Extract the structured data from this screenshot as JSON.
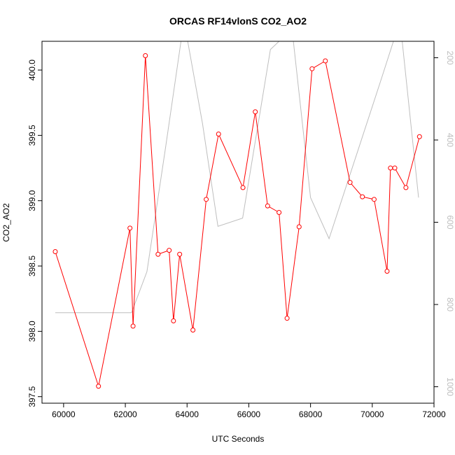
{
  "chart_data": {
    "type": "line",
    "title": "ORCAS RF14vlonS CO2_AO2",
    "xlabel": "UTC Seconds",
    "ylabel": "CO2_AO2",
    "xlim": [
      59300,
      72000
    ],
    "ylim": [
      397.45,
      400.22
    ],
    "y2lim": [
      1040,
      160
    ],
    "x_ticks": [
      60000,
      62000,
      64000,
      66000,
      68000,
      70000,
      72000
    ],
    "y_ticks": [
      397.5,
      398.0,
      398.5,
      399.0,
      399.5,
      400.0
    ],
    "y2_ticks": [
      200,
      400,
      600,
      800,
      1000
    ],
    "x_tick_labels": [
      "60000",
      "62000",
      "64000",
      "66000",
      "68000",
      "70000",
      "72000"
    ],
    "y_tick_labels": [
      "397.5",
      "398.0",
      "398.5",
      "399.0",
      "399.5",
      "400.0"
    ],
    "y2_tick_labels": [
      "200",
      "400",
      "600",
      "800",
      "1000"
    ],
    "grid": false,
    "series": [
      {
        "axis": "left",
        "color": "#ff0000",
        "marker": "open-circle",
        "x": [
          59730,
          61130,
          62150,
          62250,
          62650,
          63060,
          63420,
          63560,
          63760,
          64190,
          64620,
          65020,
          65810,
          66210,
          66610,
          66980,
          67240,
          67630,
          68050,
          68480,
          69280,
          69680,
          70060,
          70480,
          70590,
          70730,
          71090,
          71530
        ],
        "y": [
          398.61,
          397.58,
          398.79,
          398.04,
          400.11,
          398.59,
          398.62,
          398.08,
          398.59,
          398.01,
          399.01,
          399.51,
          399.1,
          399.68,
          398.96,
          398.91,
          398.1,
          398.8,
          400.01,
          400.07,
          399.14,
          399.03,
          399.01,
          398.46,
          399.25,
          399.25,
          399.1,
          399.49
        ]
      },
      {
        "axis": "right",
        "color": "#bebebe",
        "marker": "none",
        "x": [
          59730,
          62200,
          62700,
          63300,
          63900,
          64500,
          65000,
          65800,
          66700,
          67400,
          68000,
          68600,
          70300,
          70900,
          71500
        ],
        "y": [
          820,
          820,
          720,
          420,
          110,
          360,
          610,
          590,
          180,
          130,
          540,
          640,
          250,
          110,
          540
        ]
      }
    ]
  }
}
